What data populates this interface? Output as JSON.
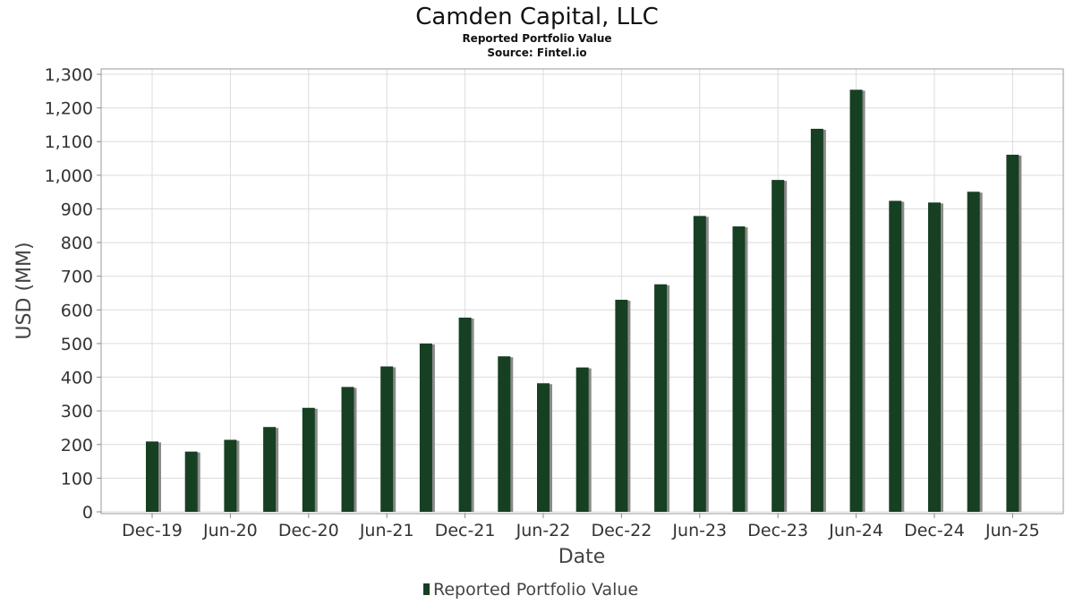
{
  "chart_data": {
    "type": "bar",
    "title": "Camden Capital, LLC",
    "subtitle": "Reported Portfolio Value",
    "source": "Source: Fintel.io",
    "xlabel": "Date",
    "ylabel": "USD (MM)",
    "ylim": [
      0,
      1300
    ],
    "yticks": [
      0,
      100,
      200,
      300,
      400,
      500,
      600,
      700,
      800,
      900,
      1000,
      1100,
      1200,
      1300
    ],
    "ytick_labels": [
      "0",
      "100",
      "200",
      "300",
      "400",
      "500",
      "600",
      "700",
      "800",
      "900",
      "1,000",
      "1,100",
      "1,200",
      "1,300"
    ],
    "xtick_labels": [
      "Dec-19",
      "Jun-20",
      "Dec-20",
      "Jun-21",
      "Dec-21",
      "Jun-22",
      "Dec-22",
      "Jun-23",
      "Dec-23",
      "Jun-24",
      "Dec-24",
      "Jun-25"
    ],
    "categories": [
      "Dec-19",
      "Mar-20",
      "Jun-20",
      "Sep-20",
      "Dec-20",
      "Mar-21",
      "Jun-21",
      "Sep-21",
      "Dec-21",
      "Mar-22",
      "Jun-22",
      "Sep-22",
      "Dec-22",
      "Mar-23",
      "Jun-23",
      "Sep-23",
      "Dec-23",
      "Mar-24",
      "Jun-24",
      "Sep-24",
      "Dec-24",
      "Mar-25",
      "Jun-25"
    ],
    "series": [
      {
        "name": "Reported Portfolio Value",
        "color": "#173f22",
        "values": [
          209,
          179,
          214,
          252,
          309,
          371,
          432,
          500,
          577,
          462,
          382,
          429,
          630,
          676,
          879,
          848,
          986,
          1138,
          1254,
          924,
          919,
          951,
          1061
        ]
      }
    ],
    "grid": true,
    "legend": "bottom-center"
  }
}
